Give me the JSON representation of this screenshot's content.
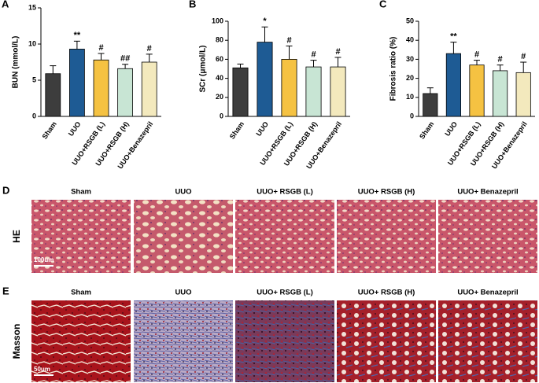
{
  "chart_data": [
    {
      "type": "bar",
      "panel": "A",
      "ylabel": "BUN (mmol/L)",
      "categories": [
        "Sham",
        "UUO",
        "UUO+RSGB (L)",
        "UUO+RSGB (H)",
        "UUO+Benazepril"
      ],
      "values": [
        5.9,
        9.3,
        7.8,
        6.6,
        7.5
      ],
      "errors": [
        1.1,
        1.1,
        0.9,
        0.6,
        1.1
      ],
      "annotations": [
        null,
        "**",
        "#",
        "##",
        "#"
      ],
      "colors": [
        "#3d3d3d",
        "#1e5b94",
        "#f5c242",
        "#c8e5d4",
        "#f3e9bd"
      ],
      "ylim": [
        0,
        15
      ],
      "yticks": [
        0,
        5,
        10,
        15
      ]
    },
    {
      "type": "bar",
      "panel": "B",
      "ylabel": "SCr (μmol/L)",
      "categories": [
        "Sham",
        "UUO",
        "UUO+RSGB (L)",
        "UUO+RSGB (H)",
        "UUO+Benazepril"
      ],
      "values": [
        51,
        78,
        60,
        52,
        52
      ],
      "errors": [
        4,
        16,
        14,
        7,
        10
      ],
      "annotations": [
        null,
        "*",
        "#",
        "#",
        "#"
      ],
      "colors": [
        "#3d3d3d",
        "#1e5b94",
        "#f5c242",
        "#c8e5d4",
        "#f3e9bd"
      ],
      "ylim": [
        0,
        100
      ],
      "yticks": [
        0,
        20,
        40,
        60,
        80,
        100
      ]
    },
    {
      "type": "bar",
      "panel": "C",
      "ylabel": "Fibrosis ratio (%)",
      "categories": [
        "Sham",
        "UUO",
        "UUO+RSGB (L)",
        "UUO+RSGB (H)",
        "UUO+Benazepril"
      ],
      "values": [
        12,
        33,
        27,
        24,
        23
      ],
      "errors": [
        3,
        6,
        2.5,
        3,
        5.5
      ],
      "annotations": [
        null,
        "**",
        "#",
        "#",
        "#"
      ],
      "colors": [
        "#3d3d3d",
        "#1e5b94",
        "#f5c242",
        "#c8e5d4",
        "#f3e9bd"
      ],
      "ylim": [
        0,
        50
      ],
      "yticks": [
        0,
        10,
        20,
        30,
        40,
        50
      ]
    }
  ],
  "image_panels": [
    {
      "panel": "D",
      "row_label": "HE",
      "scale_bar": "100um",
      "columns": [
        "Sham",
        "UUO",
        "UUO+ RSGB (L)",
        "UUO+ RSGB (H)",
        "UUO+ Benazepril"
      ]
    },
    {
      "panel": "E",
      "row_label": "Masson",
      "scale_bar": "50um",
      "columns": [
        "Sham",
        "UUO",
        "UUO+ RSGB (L)",
        "UUO+ RSGB (H)",
        "UUO+ Benazepril"
      ]
    }
  ]
}
